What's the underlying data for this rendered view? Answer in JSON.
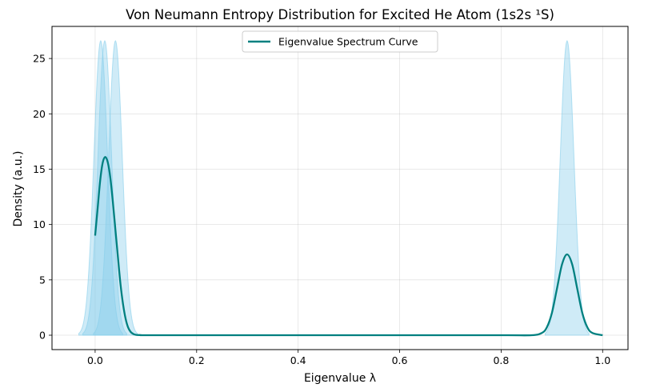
{
  "chart_data": {
    "type": "area",
    "title": "Von Neumann Entropy Distribution for Excited He Atom (1s2s ¹S)",
    "xlabel": "Eigenvalue λ",
    "ylabel": "Density (a.u.)",
    "xlim": [
      -0.085,
      1.05
    ],
    "ylim": [
      -1.3,
      27.9
    ],
    "xticks": [
      0.0,
      0.2,
      0.4,
      0.6,
      0.8,
      1.0
    ],
    "xtick_labels": [
      "0.0",
      "0.2",
      "0.4",
      "0.6",
      "0.8",
      "1.0"
    ],
    "yticks": [
      0,
      5,
      10,
      15,
      20,
      25
    ],
    "ytick_labels": [
      "0",
      "5",
      "10",
      "15",
      "20",
      "25"
    ],
    "grid": true,
    "legend": {
      "position": "top-center",
      "entries": [
        "Eigenvalue Spectrum Curve"
      ]
    },
    "filled_peaks": {
      "color": "#87ceeb",
      "opacity": 0.4,
      "peaks": [
        {
          "center": 0.011,
          "height": 26.6,
          "sigma": 0.0135
        },
        {
          "center": 0.019,
          "height": 26.6,
          "sigma": 0.0135
        },
        {
          "center": 0.04,
          "height": 26.6,
          "sigma": 0.0135
        },
        {
          "center": 0.93,
          "height": 26.6,
          "sigma": 0.0135
        }
      ]
    },
    "series": [
      {
        "name": "Eigenvalue Spectrum Curve",
        "color": "#008080",
        "x": [
          0.0,
          0.005,
          0.01,
          0.015,
          0.02,
          0.025,
          0.03,
          0.035,
          0.04,
          0.045,
          0.05,
          0.055,
          0.06,
          0.065,
          0.07,
          0.075,
          0.08,
          0.09,
          0.1,
          0.2,
          0.4,
          0.6,
          0.8,
          0.86,
          0.88,
          0.89,
          0.9,
          0.91,
          0.92,
          0.93,
          0.94,
          0.95,
          0.96,
          0.97,
          0.98,
          1.0
        ],
        "y": [
          9.0,
          11.5,
          14.0,
          15.6,
          16.1,
          15.6,
          14.2,
          12.0,
          9.5,
          7.0,
          4.6,
          2.8,
          1.5,
          0.7,
          0.3,
          0.12,
          0.04,
          0.01,
          0.0,
          0.0,
          0.0,
          0.0,
          0.0,
          0.0,
          0.2,
          0.7,
          2.0,
          4.2,
          6.4,
          7.3,
          6.4,
          4.2,
          2.0,
          0.7,
          0.2,
          0.0
        ]
      }
    ]
  }
}
